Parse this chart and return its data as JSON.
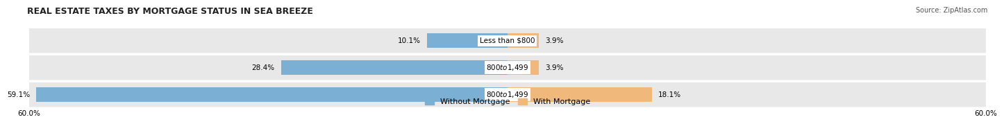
{
  "title": "REAL ESTATE TAXES BY MORTGAGE STATUS IN SEA BREEZE",
  "source": "Source: ZipAtlas.com",
  "rows": [
    {
      "label": "Less than $800",
      "without_mortgage": 10.1,
      "with_mortgage": 3.9
    },
    {
      "label": "$800 to $1,499",
      "without_mortgage": 28.4,
      "with_mortgage": 3.9
    },
    {
      "label": "$800 to $1,499",
      "without_mortgage": 59.1,
      "with_mortgage": 18.1
    }
  ],
  "x_max": 60.0,
  "x_min": -60.0,
  "color_without": "#7bafd4",
  "color_with": "#f0b87a",
  "bar_bg_color": "#e8e8e8",
  "title_fontsize": 9,
  "label_fontsize": 7.5,
  "axis_fontsize": 7.5,
  "legend_fontsize": 8,
  "source_fontsize": 7
}
